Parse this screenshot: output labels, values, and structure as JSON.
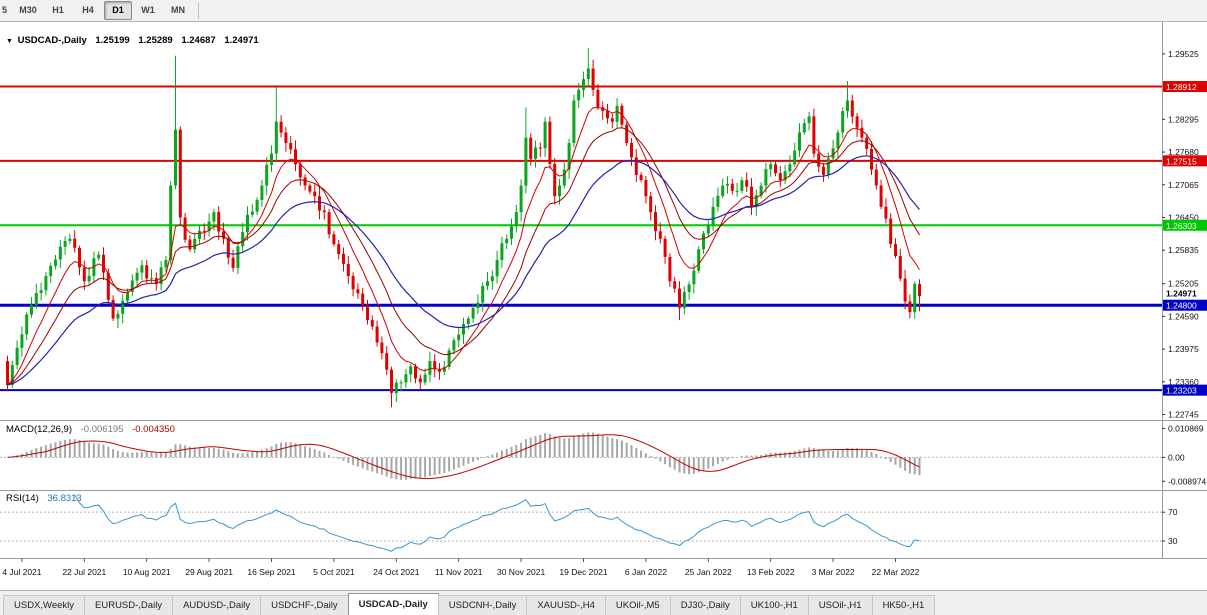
{
  "toolbar": {
    "timeframes": [
      {
        "label": "5",
        "active": false,
        "clipped": true
      },
      {
        "label": "M30",
        "active": false
      },
      {
        "label": "H1",
        "active": false
      },
      {
        "label": "H4",
        "active": false
      },
      {
        "label": "D1",
        "active": true
      },
      {
        "label": "W1",
        "active": false
      },
      {
        "label": "MN",
        "active": false
      }
    ]
  },
  "chart": {
    "header": {
      "marker": "▼",
      "symbol": "USDCAD-,Daily",
      "open": "1.25199",
      "high": "1.25289",
      "low": "1.24687",
      "close": "1.24971"
    },
    "y_ticks": [
      "1.29525",
      "1.28295",
      "1.27680",
      "1.27065",
      "1.26450",
      "1.25835",
      "1.25205",
      "1.24590",
      "1.23975",
      "1.23360",
      "1.22745"
    ],
    "hlines": [
      {
        "price": 1.28912,
        "label": "1.28912",
        "color": "#e00000",
        "width": 2
      },
      {
        "price": 1.27515,
        "label": "1.27515",
        "color": "#e00000",
        "width": 2
      },
      {
        "price": 1.26303,
        "label": "1.26303",
        "color": "#00c800",
        "width": 2
      },
      {
        "price": 1.248,
        "label": "1.24800",
        "color": "#0000c8",
        "width": 3
      },
      {
        "price": 1.23203,
        "label": "1.23203",
        "color": "#0000c8",
        "width": 2
      }
    ],
    "current_price": {
      "value": 1.24971,
      "label": "1.24971"
    }
  },
  "chart_data": {
    "type": "candlestick",
    "symbol": "USDCAD",
    "timeframe": "Daily",
    "n": 191,
    "price_range": [
      1.22717,
      1.3005
    ],
    "last_candle": {
      "open": 1.25199,
      "high": 1.25289,
      "low": 1.24687,
      "close": 1.24971
    },
    "close_waypoints": [
      [
        0,
        1.233
      ],
      [
        2,
        1.24
      ],
      [
        5,
        1.248
      ],
      [
        8,
        1.2535
      ],
      [
        11,
        1.259
      ],
      [
        13,
        1.2605
      ],
      [
        16,
        1.2525
      ],
      [
        19,
        1.2575
      ],
      [
        22,
        1.2455
      ],
      [
        25,
        1.2505
      ],
      [
        28,
        1.2555
      ],
      [
        31,
        1.252
      ],
      [
        33,
        1.2565
      ],
      [
        34,
        1.2705
      ],
      [
        35,
        1.281
      ],
      [
        36,
        1.2645
      ],
      [
        38,
        1.2585
      ],
      [
        40,
        1.262
      ],
      [
        43,
        1.2655
      ],
      [
        45,
        1.2605
      ],
      [
        47,
        1.255
      ],
      [
        50,
        1.265
      ],
      [
        53,
        1.2705
      ],
      [
        55,
        1.2765
      ],
      [
        56,
        1.2825
      ],
      [
        58,
        1.2785
      ],
      [
        60,
        1.2745
      ],
      [
        62,
        1.2705
      ],
      [
        64,
        1.2685
      ],
      [
        66,
        1.2655
      ],
      [
        68,
        1.2595
      ],
      [
        71,
        1.2535
      ],
      [
        74,
        1.248
      ],
      [
        76,
        1.244
      ],
      [
        78,
        1.239
      ],
      [
        80,
        1.2315
      ],
      [
        82,
        1.2335
      ],
      [
        84,
        1.2365
      ],
      [
        86,
        1.2335
      ],
      [
        88,
        1.2375
      ],
      [
        90,
        1.2355
      ],
      [
        92,
        1.2395
      ],
      [
        94,
        1.2425
      ],
      [
        96,
        1.2455
      ],
      [
        98,
        1.2485
      ],
      [
        100,
        1.2525
      ],
      [
        102,
        1.2565
      ],
      [
        104,
        1.2605
      ],
      [
        106,
        1.2655
      ],
      [
        107,
        1.2705
      ],
      [
        108,
        1.2795
      ],
      [
        109,
        1.2755
      ],
      [
        111,
        1.2775
      ],
      [
        112,
        1.2825
      ],
      [
        114,
        1.2685
      ],
      [
        115,
        1.2705
      ],
      [
        117,
        1.2785
      ],
      [
        118,
        1.2865
      ],
      [
        119,
        1.2885
      ],
      [
        120,
        1.2905
      ],
      [
        121,
        1.2925
      ],
      [
        122,
        1.2885
      ],
      [
        124,
        1.2845
      ],
      [
        126,
        1.2825
      ],
      [
        127,
        1.2855
      ],
      [
        129,
        1.2785
      ],
      [
        131,
        1.2725
      ],
      [
        133,
        1.2685
      ],
      [
        134,
        1.2655
      ],
      [
        136,
        1.2605
      ],
      [
        138,
        1.2525
      ],
      [
        140,
        1.2475
      ],
      [
        141,
        1.2505
      ],
      [
        143,
        1.2545
      ],
      [
        145,
        1.2615
      ],
      [
        147,
        1.2665
      ],
      [
        149,
        1.2705
      ],
      [
        151,
        1.2695
      ],
      [
        153,
        1.2715
      ],
      [
        155,
        1.2665
      ],
      [
        157,
        1.2705
      ],
      [
        159,
        1.2745
      ],
      [
        161,
        1.2715
      ],
      [
        163,
        1.2745
      ],
      [
        165,
        1.2805
      ],
      [
        167,
        1.2835
      ],
      [
        168,
        1.2765
      ],
      [
        170,
        1.2725
      ],
      [
        172,
        1.2775
      ],
      [
        174,
        1.2845
      ],
      [
        175,
        1.2865
      ],
      [
        176,
        1.2835
      ],
      [
        178,
        1.2795
      ],
      [
        180,
        1.2735
      ],
      [
        182,
        1.2665
      ],
      [
        184,
        1.2595
      ],
      [
        186,
        1.253
      ],
      [
        187,
        1.2487
      ],
      [
        188,
        1.2467
      ],
      [
        189,
        1.252
      ],
      [
        190,
        1.24971
      ]
    ],
    "spike_highs": [
      [
        35,
        1.2949
      ],
      [
        56,
        1.2891
      ],
      [
        108,
        1.2852
      ],
      [
        121,
        1.2964
      ],
      [
        175,
        1.2901
      ]
    ],
    "spike_lows": [
      [
        80,
        1.2288
      ],
      [
        140,
        1.2452
      ],
      [
        188,
        1.2455
      ]
    ],
    "moving_averages": [
      {
        "period": 8,
        "type": "ema",
        "color": "#d40000",
        "width": 1
      },
      {
        "period": 16,
        "type": "ema",
        "color": "#9b0000",
        "width": 1
      },
      {
        "period": 30,
        "type": "ema",
        "color": "#2222b0",
        "width": 1.2
      }
    ],
    "x_labels": [
      [
        3,
        "4 Jul 2021"
      ],
      [
        16,
        "22 Jul 2021"
      ],
      [
        29,
        "10 Aug 2021"
      ],
      [
        42,
        "29 Aug 2021"
      ],
      [
        55,
        "16 Sep 2021"
      ],
      [
        68,
        "5 Oct 2021"
      ],
      [
        81,
        "24 Oct 2021"
      ],
      [
        94,
        "11 Nov 2021"
      ],
      [
        107,
        "30 Nov 2021"
      ],
      [
        120,
        "19 Dec 2021"
      ],
      [
        133,
        "6 Jan 2022"
      ],
      [
        146,
        "25 Jan 2022"
      ],
      [
        159,
        "13 Feb 2022"
      ],
      [
        172,
        "3 Mar 2022"
      ],
      [
        185,
        "22 Mar 2022"
      ]
    ]
  },
  "macd": {
    "title": "MACD(12,26,9)",
    "value": "-0.006195",
    "signal_value": "-0.004350",
    "params": {
      "fast": 12,
      "slow": 26,
      "signal": 9
    },
    "range": [
      -0.01,
      0.0133
    ],
    "axis": [
      {
        "v": 0.010869,
        "t": "0.010869"
      },
      {
        "v": 0,
        "t": "0.00"
      },
      {
        "v": -0.008974,
        "t": "-0.008974"
      }
    ]
  },
  "rsi": {
    "title": "RSI(14)",
    "value": "36.8313",
    "period": 14,
    "range": [
      12,
      98
    ],
    "color": "#3a96d2",
    "levels": [
      {
        "v": 70,
        "t": "70"
      },
      {
        "v": 30,
        "t": "30"
      }
    ]
  },
  "tabs": [
    {
      "label": "USDX,Weekly",
      "active": false
    },
    {
      "label": "EURUSD-,Daily",
      "active": false
    },
    {
      "label": "AUDUSD-,Daily",
      "active": false
    },
    {
      "label": "USDCHF-,Daily",
      "active": false
    },
    {
      "label": "USDCAD-,Daily",
      "active": true
    },
    {
      "label": "USDCNH-,Daily",
      "active": false
    },
    {
      "label": "XAUUSD-,H4",
      "active": false
    },
    {
      "label": "UKOil-,M5",
      "active": false
    },
    {
      "label": "DJ30-,Daily",
      "active": false
    },
    {
      "label": "UK100-,H1",
      "active": false
    },
    {
      "label": "USOil-,H1",
      "active": false
    },
    {
      "label": "HK50-,H1",
      "active": false
    }
  ],
  "colors": {
    "candle_up": "#0aa51e",
    "candle_down": "#e00202",
    "macd_hist": "#a6a6a6",
    "macd_signal": "#c00000"
  }
}
